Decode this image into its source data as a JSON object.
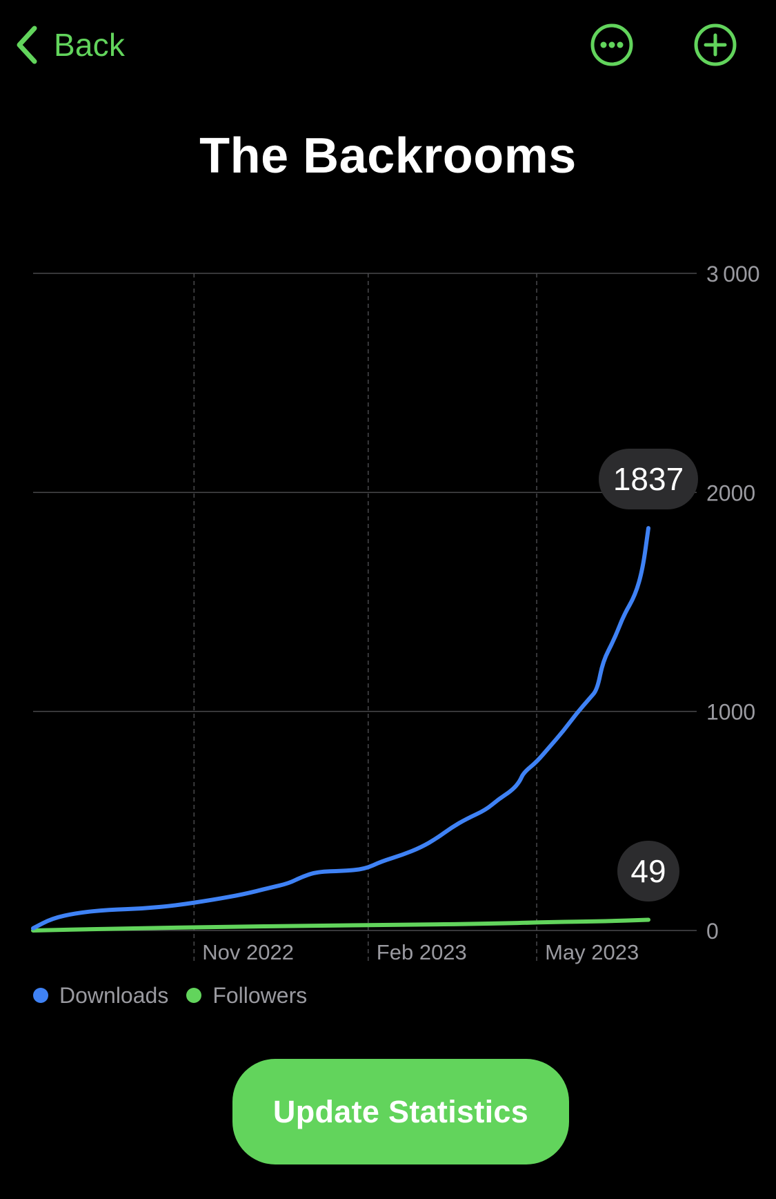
{
  "colors": {
    "accent": "#62d45c",
    "downloads": "#3f82f5",
    "followers": "#62d45c",
    "background": "#000000",
    "grid": "#4a4a4d",
    "bubble": "#2c2c2e"
  },
  "nav": {
    "back_label": "Back",
    "back_icon": "chevron-left-icon",
    "more_icon": "ellipsis-circle-icon",
    "add_icon": "plus-circle-icon"
  },
  "title": "The Backrooms",
  "chart_data": {
    "type": "line",
    "title": "The Backrooms",
    "xlabel": "",
    "ylabel": "",
    "x_ticks": [
      "Nov 2022",
      "Feb 2023",
      "May 2023"
    ],
    "y_ticks": [
      "0",
      "1000",
      "2000",
      "3 000"
    ],
    "ylim": [
      0,
      3000
    ],
    "xlim": [
      "2022-08-08",
      "2023-06-29"
    ],
    "grid": true,
    "legend_position": "bottom-left",
    "series": [
      {
        "name": "Downloads",
        "last_value_label": "1837",
        "points": [
          [
            "2022-08-08",
            10
          ],
          [
            "2022-08-18",
            55
          ],
          [
            "2022-08-31",
            80
          ],
          [
            "2022-09-17",
            95
          ],
          [
            "2022-10-05",
            100
          ],
          [
            "2022-10-23",
            115
          ],
          [
            "2022-11-11",
            140
          ],
          [
            "2022-11-27",
            165
          ],
          [
            "2022-12-11",
            195
          ],
          [
            "2022-12-21",
            215
          ],
          [
            "2022-12-28",
            245
          ],
          [
            "2023-01-05",
            268
          ],
          [
            "2023-01-19",
            272
          ],
          [
            "2023-01-30",
            280
          ],
          [
            "2023-02-08",
            315
          ],
          [
            "2023-02-19",
            345
          ],
          [
            "2023-03-01",
            380
          ],
          [
            "2023-03-09",
            420
          ],
          [
            "2023-03-17",
            470
          ],
          [
            "2023-03-25",
            510
          ],
          [
            "2023-04-04",
            550
          ],
          [
            "2023-04-11",
            600
          ],
          [
            "2023-04-18",
            640
          ],
          [
            "2023-04-22",
            680
          ],
          [
            "2023-04-24",
            720
          ],
          [
            "2023-05-01",
            770
          ],
          [
            "2023-05-08",
            840
          ],
          [
            "2023-05-15",
            910
          ],
          [
            "2023-05-22",
            990
          ],
          [
            "2023-05-29",
            1060
          ],
          [
            "2023-06-02",
            1100
          ],
          [
            "2023-06-05",
            1230
          ],
          [
            "2023-06-11",
            1330
          ],
          [
            "2023-06-16",
            1440
          ],
          [
            "2023-06-22",
            1530
          ],
          [
            "2023-06-26",
            1650
          ],
          [
            "2023-06-29",
            1837
          ]
        ]
      },
      {
        "name": "Followers",
        "last_value_label": "49",
        "points": [
          [
            "2022-08-08",
            0
          ],
          [
            "2022-09-17",
            8
          ],
          [
            "2022-11-11",
            16
          ],
          [
            "2023-01-05",
            22
          ],
          [
            "2023-02-19",
            26
          ],
          [
            "2023-04-04",
            31
          ],
          [
            "2023-05-08",
            38
          ],
          [
            "2023-06-05",
            42
          ],
          [
            "2023-06-29",
            49
          ]
        ]
      }
    ]
  },
  "legend": [
    {
      "label": "Downloads",
      "color": "#3f82f5"
    },
    {
      "label": "Followers",
      "color": "#62d45c"
    }
  ],
  "update_button_label": "Update Statistics"
}
